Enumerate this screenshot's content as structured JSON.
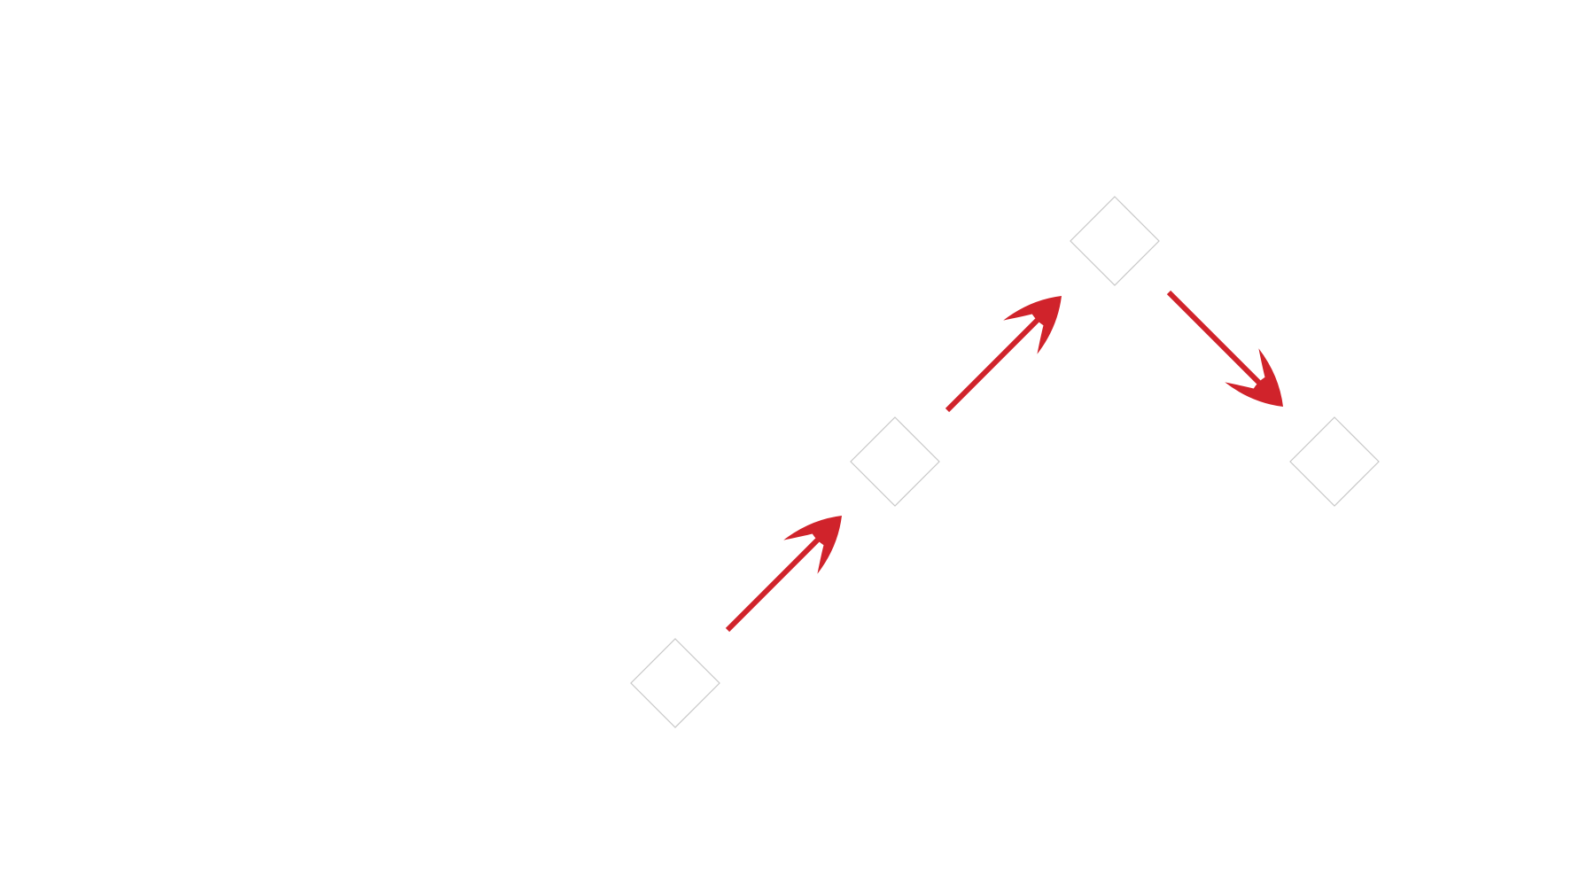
{
  "diagram": {
    "type": "flow",
    "node_shape": "diamond",
    "node_count": 4,
    "nodes": [
      {
        "id": "node-1"
      },
      {
        "id": "node-2"
      },
      {
        "id": "node-3"
      },
      {
        "id": "node-4"
      }
    ],
    "edges": [
      {
        "from": "node-1",
        "to": "node-2",
        "direction": "up-right"
      },
      {
        "from": "node-2",
        "to": "node-3",
        "direction": "up-right"
      },
      {
        "from": "node-3",
        "to": "node-4",
        "direction": "down-right"
      }
    ]
  },
  "colors": {
    "background": "#ffffff",
    "arrow": "#d0232b",
    "node_fill": "#ffffff",
    "node_stroke": "#c8c8c8"
  }
}
